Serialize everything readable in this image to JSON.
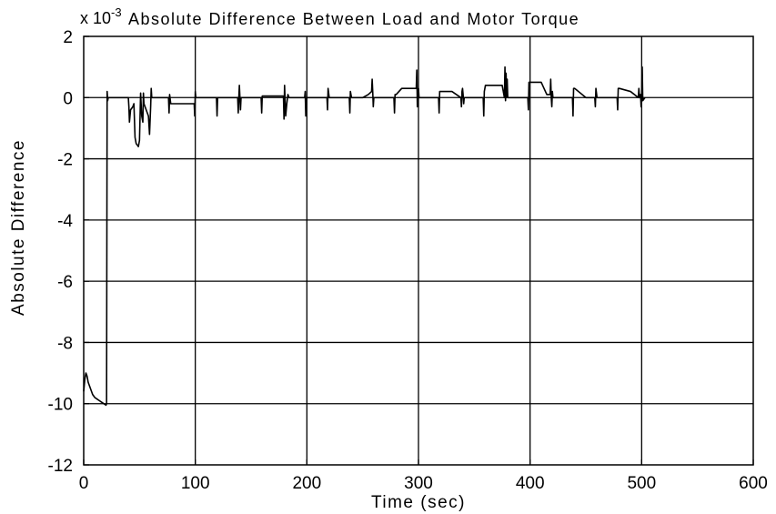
{
  "chart_data": {
    "type": "line",
    "title": "Absolute Difference Between Load and Motor Torque",
    "xlabel": "Time (sec)",
    "ylabel": "Absolute Difference",
    "y_multiplier": "x 10",
    "y_multiplier_exponent": "-3",
    "xlim": [
      0,
      600
    ],
    "ylim": [
      -12,
      2
    ],
    "xticks": [
      0,
      100,
      200,
      300,
      400,
      500,
      600
    ],
    "yticks": [
      2,
      0,
      -2,
      -4,
      -6,
      -8,
      -10,
      -12
    ],
    "xtick_labels": [
      "0",
      "100",
      "200",
      "300",
      "400",
      "500",
      "600"
    ],
    "ytick_labels": [
      "2",
      "0",
      "-2",
      "-4",
      "-6",
      "-8",
      "-10",
      "-12"
    ],
    "grid": true,
    "line_color": "#000000",
    "series": [
      {
        "x": [
          0,
          1,
          2,
          3,
          4,
          5,
          6,
          8,
          10,
          12,
          14,
          16,
          18,
          20,
          20.5,
          21,
          21.5,
          22,
          24,
          30,
          38,
          40,
          40.5,
          41,
          42,
          44,
          45,
          46,
          47,
          48,
          49,
          50,
          51,
          52,
          53,
          53.5,
          54,
          55,
          56,
          57,
          58,
          59,
          60,
          60.5,
          61,
          62,
          63,
          64,
          75,
          76,
          76.5,
          77,
          78,
          80,
          90,
          99,
          99.5,
          100,
          100.5,
          101,
          110,
          118,
          119,
          119.5,
          120,
          130,
          138,
          138.5,
          139,
          139.5,
          140,
          140.5,
          141,
          150,
          158,
          159,
          159.5,
          160,
          175,
          179,
          179.5,
          180,
          181,
          182,
          183,
          184,
          190,
          198,
          198.5,
          199,
          200,
          210,
          218,
          218.5,
          219,
          220,
          238,
          238.5,
          239,
          240,
          250,
          255,
          258,
          258.5,
          259,
          259.5,
          260,
          260.5,
          261,
          270,
          278,
          278.5,
          279,
          280,
          285,
          290,
          298,
          298.5,
          299,
          299.5,
          300,
          300.5,
          301,
          310,
          318,
          318.5,
          319,
          320,
          330,
          338,
          338.5,
          339,
          339.5,
          340,
          340.5,
          341,
          350,
          358,
          358.5,
          359,
          360,
          365,
          375,
          377,
          377.5,
          378,
          378.5,
          379,
          379.5,
          380,
          390,
          398,
          398.5,
          399,
          400,
          410,
          415,
          418,
          418.5,
          419,
          419.5,
          420,
          420.5,
          421,
          430,
          438,
          438.5,
          439,
          440,
          450,
          458,
          458.5,
          459,
          460,
          470,
          478,
          478.5,
          479,
          480,
          490,
          497,
          497.5,
          498,
          498.5,
          499,
          499.5,
          500,
          500.5,
          501,
          503
        ],
        "y": [
          -9.6,
          -9.2,
          -9.0,
          -9.1,
          -9.3,
          -9.4,
          -9.5,
          -9.7,
          -9.8,
          -9.85,
          -9.9,
          -9.95,
          -10.0,
          -10.05,
          -10.0,
          0.2,
          -0.1,
          0.0,
          0.0,
          0.0,
          0.0,
          0.0,
          -0.3,
          -0.8,
          -0.4,
          -0.3,
          -0.2,
          -1.3,
          -1.5,
          -1.55,
          -1.6,
          -1.4,
          0.15,
          -0.6,
          -0.8,
          0.15,
          -0.2,
          -0.3,
          -0.4,
          -0.5,
          -0.6,
          -1.2,
          -0.3,
          0.3,
          0.0,
          0.0,
          0.0,
          0.0,
          0.0,
          0.0,
          -0.5,
          0.1,
          -0.2,
          -0.2,
          -0.2,
          -0.2,
          -0.6,
          0.2,
          0.0,
          0.0,
          0.0,
          0.0,
          0.0,
          -0.6,
          0.0,
          0.0,
          0.0,
          -0.5,
          0.0,
          0.4,
          0.0,
          -0.4,
          0.0,
          0.0,
          0.0,
          0.0,
          -0.5,
          0.05,
          0.05,
          0.05,
          -0.7,
          0.4,
          -0.6,
          -0.2,
          0.1,
          0.0,
          0.0,
          0.0,
          0.2,
          -0.6,
          0.0,
          0.0,
          0.0,
          -0.4,
          0.3,
          0.0,
          0.0,
          -0.5,
          0.2,
          0.0,
          0.0,
          0.1,
          0.2,
          0.6,
          0.2,
          -0.3,
          0.0,
          0.0,
          0.0,
          0.0,
          0.0,
          -0.5,
          0.1,
          0.1,
          0.3,
          0.3,
          0.3,
          0.9,
          -0.3,
          0.0,
          0.3,
          0.0,
          0.0,
          0.0,
          0.0,
          -0.5,
          0.2,
          0.2,
          0.2,
          0.0,
          -0.3,
          0.2,
          0.3,
          0.1,
          -0.2,
          0.0,
          0.0,
          0.0,
          -0.6,
          0.2,
          0.4,
          0.4,
          0.4,
          0.0,
          1.0,
          -0.1,
          0.8,
          0.0,
          0.6,
          0.0,
          0.0,
          0.0,
          -0.4,
          0.5,
          0.5,
          0.5,
          0.1,
          0.1,
          0.6,
          0.0,
          -0.3,
          0.2,
          0.0,
          0.0,
          0.0,
          0.0,
          -0.6,
          0.3,
          0.3,
          0.0,
          0.0,
          -0.3,
          0.3,
          0.0,
          0.0,
          0.0,
          -0.4,
          0.3,
          0.3,
          0.2,
          0.0,
          0.3,
          0.0,
          0.0,
          0.1,
          -0.3,
          0.0,
          1.0,
          -0.1,
          0.0
        ]
      }
    ]
  }
}
